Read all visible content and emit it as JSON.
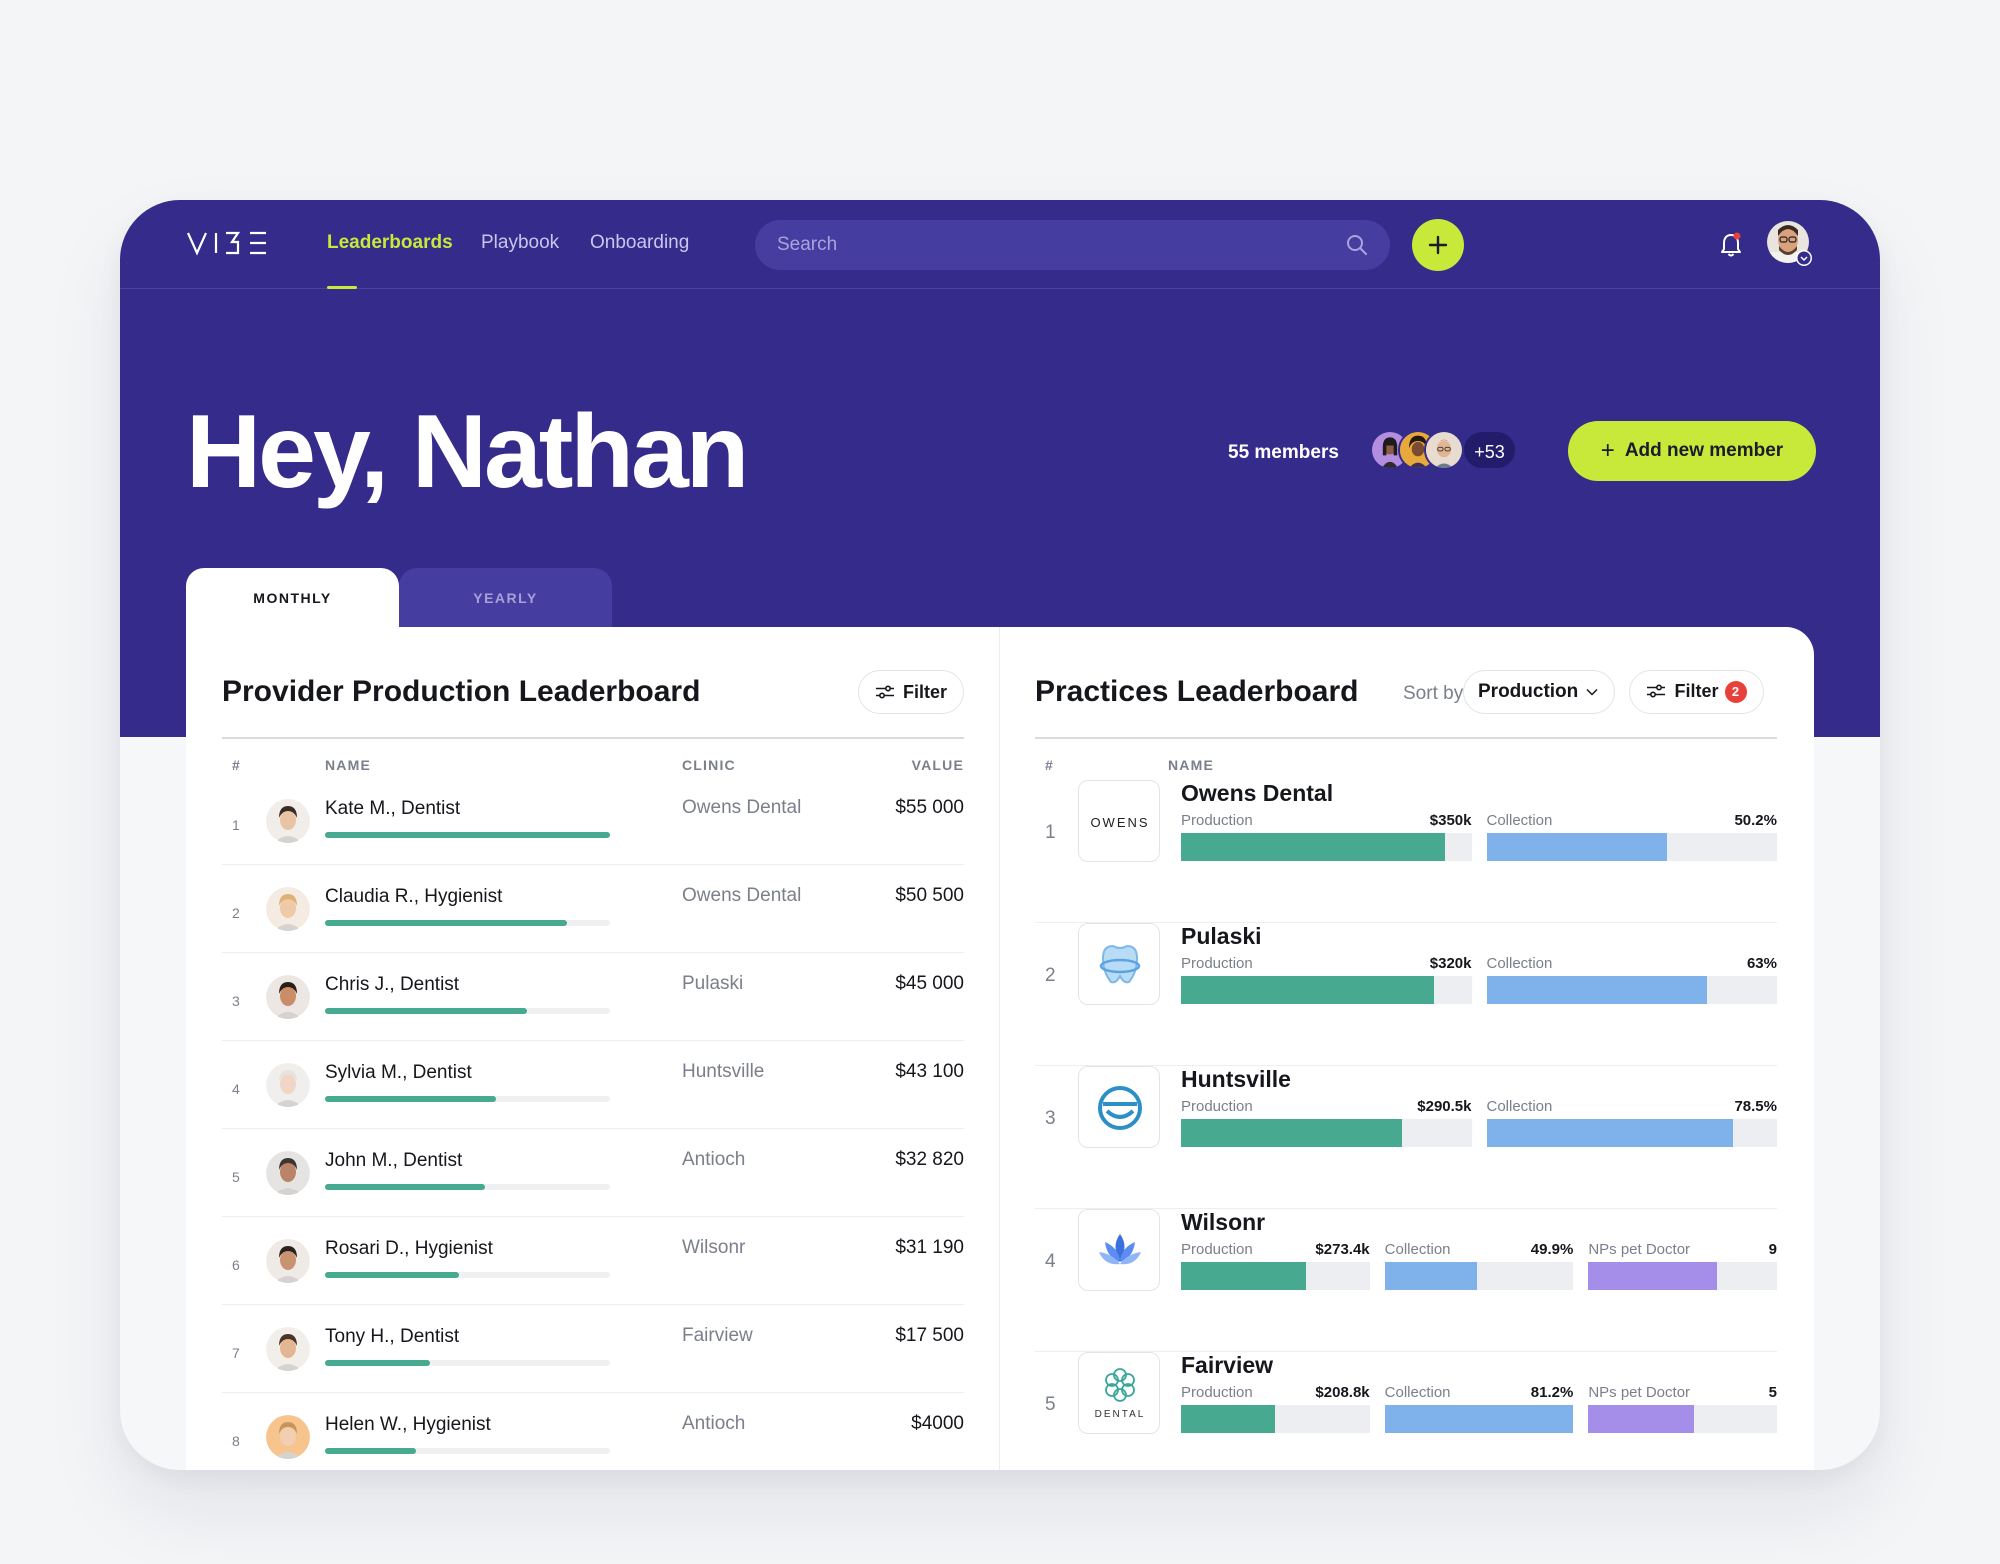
{
  "nav": {
    "links": [
      {
        "label": "Leaderboards"
      },
      {
        "label": "Playbook"
      },
      {
        "label": "Onboarding"
      }
    ],
    "search_placeholder": "Search"
  },
  "hero": {
    "greeting": "Hey, Nathan",
    "members_label": "55 members",
    "more_count": "+53",
    "add_member_label": "Add new member"
  },
  "tabs": {
    "monthly": "MONTHLY",
    "yearly": "YEARLY"
  },
  "providers": {
    "title": "Provider Production Leaderboard",
    "filter_label": "Filter",
    "columns": {
      "rank": "#",
      "name": "NAME",
      "clinic": "CLINIC",
      "value": "VALUE"
    },
    "rows": [
      {
        "rank": "1",
        "name": "Kate M., Dentist",
        "clinic": "Owens Dental",
        "value": "$55 000",
        "progress": 1.0
      },
      {
        "rank": "2",
        "name": "Claudia R., Hygienist",
        "clinic": "Owens Dental",
        "value": "$50 500",
        "progress": 0.85
      },
      {
        "rank": "3",
        "name": "Chris J., Dentist",
        "clinic": "Pulaski",
        "value": "$45 000",
        "progress": 0.71
      },
      {
        "rank": "4",
        "name": "Sylvia M., Dentist",
        "clinic": "Huntsville",
        "value": "$43 100",
        "progress": 0.6
      },
      {
        "rank": "5",
        "name": "John M., Dentist",
        "clinic": "Antioch",
        "value": "$32 820",
        "progress": 0.56
      },
      {
        "rank": "6",
        "name": "Rosari D., Hygienist",
        "clinic": "Wilsonr",
        "value": "$31 190",
        "progress": 0.47
      },
      {
        "rank": "7",
        "name": "Tony H., Dentist",
        "clinic": "Fairview",
        "value": "$17 500",
        "progress": 0.37
      },
      {
        "rank": "8",
        "name": "Helen W., Hygienist",
        "clinic": "Antioch",
        "value": "$4000",
        "progress": 0.32
      }
    ]
  },
  "practices": {
    "title": "Practices Leaderboard",
    "sort_label": "Sort by",
    "sort_value": "Production",
    "filter_label": "Filter",
    "filter_badge": "2",
    "columns": {
      "rank": "#",
      "name": "NAME"
    },
    "rows": [
      {
        "rank": "1",
        "name": "Owens Dental",
        "logo_text": "OWENS",
        "metrics": [
          {
            "label": "Production",
            "value": "$350k",
            "fill": 0.91,
            "color": "#47a98f"
          },
          {
            "label": "Collection",
            "value": "50.2%",
            "fill": 0.62,
            "color": "#7fb2ea"
          }
        ]
      },
      {
        "rank": "2",
        "name": "Pulaski",
        "logo_text": "",
        "metrics": [
          {
            "label": "Production",
            "value": "$320k",
            "fill": 0.87,
            "color": "#47a98f"
          },
          {
            "label": "Collection",
            "value": "63%",
            "fill": 0.76,
            "color": "#7fb2ea"
          }
        ]
      },
      {
        "rank": "3",
        "name": "Huntsville",
        "logo_text": "",
        "metrics": [
          {
            "label": "Production",
            "value": "$290.5k",
            "fill": 0.76,
            "color": "#47a98f"
          },
          {
            "label": "Collection",
            "value": "78.5%",
            "fill": 0.85,
            "color": "#7fb2ea"
          }
        ]
      },
      {
        "rank": "4",
        "name": "Wilsonr",
        "logo_text": "",
        "metrics": [
          {
            "label": "Production",
            "value": "$273.4k",
            "fill": 0.66,
            "color": "#47a98f"
          },
          {
            "label": "Collection",
            "value": "49.9%",
            "fill": 0.49,
            "color": "#7fb2ea"
          },
          {
            "label": "NPs pet Doctor",
            "value": "9",
            "fill": 0.68,
            "color": "#a48ee9"
          }
        ]
      },
      {
        "rank": "5",
        "name": "Fairview",
        "logo_text": "DENTAL",
        "metrics": [
          {
            "label": "Production",
            "value": "$208.8k",
            "fill": 0.5,
            "color": "#47a98f"
          },
          {
            "label": "Collection",
            "value": "81.2%",
            "fill": 1.0,
            "color": "#7fb2ea"
          },
          {
            "label": "NPs pet Doctor",
            "value": "5",
            "fill": 0.56,
            "color": "#a48ee9"
          }
        ]
      }
    ]
  },
  "colors": {
    "brand_navy": "#342b8a",
    "accent_lime": "#c8e83a",
    "production_green": "#47a98f",
    "collection_blue": "#7fb2ea",
    "nps_purple": "#a48ee9"
  }
}
